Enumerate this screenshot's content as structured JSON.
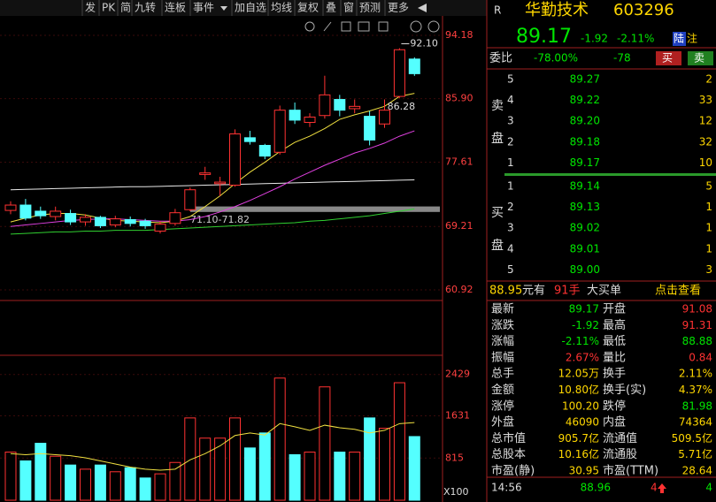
{
  "toolbar": [
    "发",
    "PK",
    "简",
    "九转",
    "连板",
    "事件",
    "加自选",
    "均线",
    "复权",
    "叠",
    "窗",
    "预测",
    "更多"
  ],
  "chart": {
    "type": "candlestick",
    "ylim": [
      59.53,
      96.72
    ],
    "yticks": [
      94.18,
      {
        "value": 85.9,
        "label": "85.90"
      },
      77.61,
      69.21,
      60.92
    ],
    "vol_ylim": [
      0,
      2800
    ],
    "vol_ticks": [
      2429,
      1631,
      815
    ],
    "vol_unit": "X100",
    "annotations": [
      "92.10",
      "86.28",
      "71.10-71.82"
    ],
    "candles": [
      {
        "open": 71.3,
        "high": 72.5,
        "low": 70.8,
        "close": 72.0
      },
      {
        "open": 72.0,
        "high": 72.8,
        "low": 70.0,
        "close": 70.3
      },
      {
        "open": 71.2,
        "high": 71.8,
        "low": 70.2,
        "close": 70.6
      },
      {
        "open": 70.5,
        "high": 71.8,
        "low": 70.0,
        "close": 71.2
      },
      {
        "open": 70.9,
        "high": 71.4,
        "low": 69.4,
        "close": 69.8
      },
      {
        "open": 69.8,
        "high": 70.8,
        "low": 69.3,
        "close": 70.4
      },
      {
        "open": 70.4,
        "high": 70.6,
        "low": 69.0,
        "close": 69.3
      },
      {
        "open": 69.4,
        "high": 70.6,
        "low": 69.1,
        "close": 70.2
      },
      {
        "open": 70.1,
        "high": 70.5,
        "low": 69.2,
        "close": 69.6
      },
      {
        "open": 69.9,
        "high": 70.2,
        "low": 68.9,
        "close": 69.3
      },
      {
        "open": 68.6,
        "high": 69.9,
        "low": 68.3,
        "close": 69.5
      },
      {
        "open": 69.6,
        "high": 71.5,
        "low": 69.3,
        "close": 71.0
      },
      {
        "open": 71.4,
        "high": 74.3,
        "low": 71.2,
        "close": 74.0
      },
      {
        "open": 76.0,
        "high": 77.0,
        "low": 75.3,
        "close": 76.2
      },
      {
        "open": 74.8,
        "high": 75.7,
        "low": 73.2,
        "close": 75.0
      },
      {
        "open": 74.6,
        "high": 81.9,
        "low": 74.4,
        "close": 81.3
      },
      {
        "open": 80.8,
        "high": 81.7,
        "low": 79.9,
        "close": 80.3
      },
      {
        "open": 79.8,
        "high": 80.0,
        "low": 78.0,
        "close": 78.4
      },
      {
        "open": 78.9,
        "high": 85.0,
        "low": 78.6,
        "close": 84.4
      },
      {
        "open": 84.4,
        "high": 85.4,
        "low": 82.6,
        "close": 83.1
      },
      {
        "open": 82.8,
        "high": 84.0,
        "low": 82.2,
        "close": 83.5
      },
      {
        "open": 83.7,
        "high": 88.9,
        "low": 83.3,
        "close": 86.4
      },
      {
        "open": 85.8,
        "high": 86.4,
        "low": 83.6,
        "close": 84.4
      },
      {
        "open": 84.6,
        "high": 85.8,
        "low": 84.0,
        "close": 84.9
      },
      {
        "open": 83.6,
        "high": 84.3,
        "low": 79.8,
        "close": 80.5
      },
      {
        "open": 82.6,
        "high": 85.8,
        "low": 82.1,
        "close": 84.4
      },
      {
        "open": 86.2,
        "high": 92.5,
        "low": 86.0,
        "close": 92.3
      },
      {
        "open": 91.08,
        "high": 91.31,
        "low": 88.88,
        "close": 89.17
      }
    ],
    "volume": [
      930,
      760,
      1100,
      850,
      680,
      600,
      680,
      550,
      630,
      430,
      510,
      730,
      1590,
      1200,
      1200,
      1590,
      1010,
      1300,
      2360,
      880,
      930,
      2190,
      930,
      930,
      1590,
      1390,
      2270,
      1230
    ],
    "ma": [
      {
        "color": "#e8e8e8",
        "values": [
          74.0,
          74.05,
          74.1,
          74.15,
          74.2,
          74.25,
          74.3,
          74.35,
          74.4,
          74.4,
          74.45,
          74.5,
          74.55,
          74.6,
          74.65,
          74.7,
          74.75,
          74.8,
          74.85,
          74.9,
          74.95,
          75.0,
          75.05,
          75.1,
          75.15,
          75.2,
          75.25,
          75.3
        ]
      },
      {
        "color": "#f0e040",
        "values": [
          69.8,
          70.3,
          70.7,
          70.9,
          70.9,
          70.7,
          70.3,
          70.0,
          69.9,
          69.8,
          69.7,
          69.9,
          70.5,
          71.8,
          73.2,
          74.8,
          76.3,
          77.6,
          79.0,
          80.2,
          81.0,
          82.0,
          83.2,
          83.8,
          84.3,
          84.9,
          86.2,
          86.6
        ]
      },
      {
        "color": "#e040e0",
        "values": [
          69.2,
          69.4,
          69.6,
          69.8,
          70.0,
          70.1,
          70.2,
          70.2,
          70.1,
          70.0,
          69.9,
          69.9,
          70.1,
          70.5,
          71.1,
          71.8,
          72.6,
          73.5,
          74.4,
          75.4,
          76.3,
          77.2,
          78.0,
          78.8,
          79.4,
          80.1,
          81.0,
          81.7
        ]
      },
      {
        "color": "#30d030",
        "values": [
          68.2,
          68.3,
          68.4,
          68.5,
          68.5,
          68.6,
          68.6,
          68.7,
          68.7,
          68.7,
          68.8,
          68.9,
          69.0,
          69.1,
          69.2,
          69.3,
          69.4,
          69.5,
          69.6,
          69.7,
          69.9,
          70.0,
          70.2,
          70.4,
          70.6,
          70.9,
          71.2,
          71.5
        ]
      }
    ],
    "vol_ma": {
      "color": "#f0e040",
      "values": [
        900,
        880,
        900,
        880,
        860,
        820,
        760,
        700,
        640,
        600,
        580,
        600,
        780,
        900,
        1050,
        1250,
        1300,
        1260,
        1480,
        1420,
        1350,
        1450,
        1400,
        1370,
        1300,
        1350,
        1480,
        1500
      ]
    }
  },
  "quote": {
    "flag": "R",
    "name": "华勤技术",
    "code": "603296",
    "price": "89.17",
    "change": "-1.92",
    "pct": "-2.11%",
    "badges": [
      "陆",
      "注"
    ],
    "ratio_label": "委比",
    "ratio": "-78.00%",
    "ratio_diff": "-78",
    "buy_btn": "买",
    "sell_btn": "卖",
    "sell_label": [
      "卖",
      "盘"
    ],
    "buy_label": [
      "买",
      "盘"
    ],
    "asks": [
      [
        "5",
        "89.27",
        "2"
      ],
      [
        "4",
        "89.22",
        "33"
      ],
      [
        "3",
        "89.20",
        "12"
      ],
      [
        "2",
        "89.18",
        "32"
      ],
      [
        "1",
        "89.17",
        "10"
      ]
    ],
    "bids": [
      [
        "1",
        "89.14",
        "5"
      ],
      [
        "2",
        "89.13",
        "1"
      ],
      [
        "3",
        "89.02",
        "1"
      ],
      [
        "4",
        "89.01",
        "1"
      ],
      [
        "5",
        "89.00",
        "3"
      ]
    ],
    "big_order": [
      "88.95",
      "元有",
      "91手",
      "大买单",
      "点击查看"
    ],
    "stats": [
      [
        "最新",
        "89.17",
        "开盘",
        "91.08"
      ],
      [
        "涨跌",
        "-1.92",
        "最高",
        "91.31"
      ],
      [
        "涨幅",
        "-2.11%",
        "最低",
        "88.88"
      ],
      [
        "振幅",
        "2.67%",
        "量比",
        "0.84"
      ],
      [
        "总手",
        "12.05万",
        "换手",
        "2.11%"
      ],
      [
        "金额",
        "10.80亿",
        "换手(实)",
        "4.37%"
      ],
      [
        "涨停",
        "100.20",
        "跌停",
        "81.98"
      ],
      [
        "外盘",
        "46090",
        "内盘",
        "74364"
      ],
      [
        "总市值",
        "905.7亿",
        "流通值",
        "509.5亿"
      ],
      [
        "总股本",
        "10.16亿",
        "流通股",
        "5.71亿"
      ],
      [
        "市盈(静)",
        "30.95",
        "市盈(TTM)",
        "28.64"
      ]
    ],
    "tick": [
      "14:56",
      "88.96",
      "4",
      "4"
    ]
  }
}
